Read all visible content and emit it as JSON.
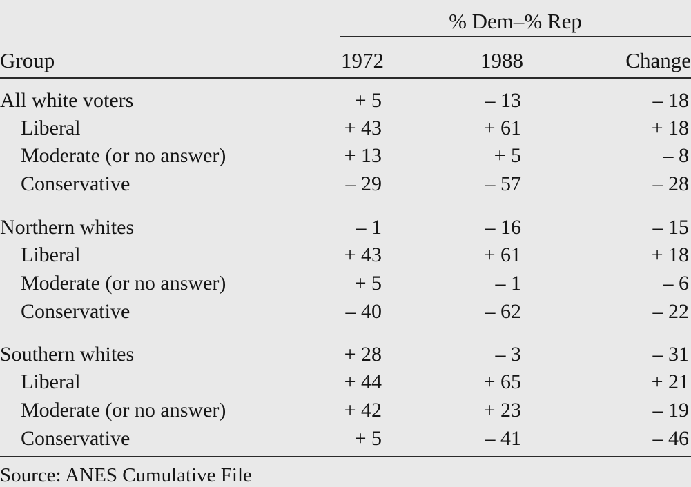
{
  "table": {
    "spanner": "% Dem–% Rep",
    "headers": {
      "group": "Group",
      "col1": "1972",
      "col2": "1988",
      "col3": "Change"
    },
    "rows": [
      {
        "group": "All white voters",
        "v1972": "+ 5",
        "v1988": "– 13",
        "change": "– 18",
        "level": "main"
      },
      {
        "group": "Liberal",
        "v1972": "+ 43",
        "v1988": "+ 61",
        "change": "+ 18",
        "level": "sub"
      },
      {
        "group": "Moderate (or no answer)",
        "v1972": "+ 13",
        "v1988": "+ 5",
        "change": "– 8",
        "level": "sub"
      },
      {
        "group": "Conservative",
        "v1972": "– 29",
        "v1988": "– 57",
        "change": "– 28",
        "level": "sub"
      },
      {
        "group": "Northern whites",
        "v1972": "– 1",
        "v1988": "– 16",
        "change": "– 15",
        "level": "main"
      },
      {
        "group": "Liberal",
        "v1972": "+ 43",
        "v1988": "+ 61",
        "change": "+ 18",
        "level": "sub"
      },
      {
        "group": "Moderate (or no answer)",
        "v1972": "+ 5",
        "v1988": "– 1",
        "change": "– 6",
        "level": "sub"
      },
      {
        "group": "Conservative",
        "v1972": "– 40",
        "v1988": "– 62",
        "change": "– 22",
        "level": "sub"
      },
      {
        "group": "Southern whites",
        "v1972": "+ 28",
        "v1988": "– 3",
        "change": "– 31",
        "level": "main"
      },
      {
        "group": "Liberal",
        "v1972": "+ 44",
        "v1988": "+ 65",
        "change": "+ 21",
        "level": "sub"
      },
      {
        "group": "Moderate (or no answer)",
        "v1972": "+ 42",
        "v1988": "+ 23",
        "change": "– 19",
        "level": "sub"
      },
      {
        "group": "Conservative",
        "v1972": "+ 5",
        "v1988": "– 41",
        "change": "– 46",
        "level": "sub"
      }
    ],
    "source": "Source: ANES Cumulative File"
  }
}
